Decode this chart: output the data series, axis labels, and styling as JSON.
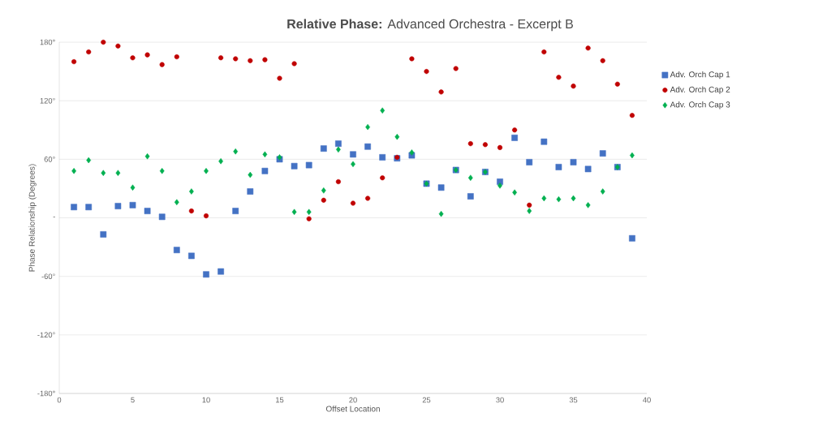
{
  "chart_data": {
    "type": "scatter",
    "title": "**Relative Phase:** Advanced Orchestra - Excerpt B",
    "xlabel": "Offset Location",
    "ylabel": "Phase Relationship (Degrees)",
    "x": [
      1,
      2,
      3,
      4,
      5,
      6,
      7,
      8,
      9,
      10,
      11,
      12,
      13,
      14,
      15,
      16,
      17,
      18,
      19,
      20,
      21,
      22,
      23,
      24,
      25,
      26,
      27,
      28,
      29,
      30,
      31,
      32,
      33,
      34,
      35,
      36,
      37,
      38,
      39
    ],
    "series": [
      {
        "name": "Adv. Orch Cap 1",
        "color": "#4472c4",
        "marker": "square",
        "values": [
          11,
          11,
          -17,
          12,
          13,
          7,
          1,
          -33,
          -39,
          -58,
          -55,
          7,
          27,
          48,
          60,
          53,
          54,
          71,
          76,
          65,
          73,
          62,
          61,
          64,
          35,
          31,
          49,
          22,
          47,
          37,
          82,
          57,
          78,
          52,
          57,
          50,
          66,
          52,
          -21
        ]
      },
      {
        "name": "Adv. Orch Cap 2",
        "color": "#c00000",
        "marker": "circle",
        "values": [
          160,
          170,
          180,
          176,
          164,
          167,
          157,
          165,
          7,
          2,
          164,
          163,
          161,
          162,
          143,
          158,
          -1,
          18,
          37,
          15,
          20,
          41,
          62,
          163,
          150,
          129,
          153,
          76,
          75,
          72,
          90,
          13,
          170,
          144,
          135,
          174,
          161,
          137,
          105
        ]
      },
      {
        "name": "Adv. Orch Cap 3",
        "color": "#00b050",
        "marker": "diamond",
        "values": [
          48,
          59,
          46,
          46,
          31,
          63,
          48,
          16,
          27,
          48,
          58,
          68,
          44,
          65,
          62,
          6,
          6,
          28,
          70,
          55,
          93,
          110,
          83,
          67,
          35,
          4,
          49,
          41,
          47,
          33,
          26,
          7,
          20,
          19,
          20,
          13,
          27,
          52,
          64
        ]
      }
    ],
    "xlim": [
      0,
      40
    ],
    "xticks": [
      0,
      5,
      10,
      15,
      20,
      25,
      30,
      35,
      40
    ],
    "ylim": [
      -180,
      180
    ],
    "yticks": [
      {
        "value": -180,
        "label": "-180°"
      },
      {
        "value": -120,
        "label": "-120°"
      },
      {
        "value": -60,
        "label": "-60°"
      },
      {
        "value": 0,
        "label": "-"
      },
      {
        "value": 60,
        "label": "60°"
      },
      {
        "value": 120,
        "label": "120°"
      },
      {
        "value": 180,
        "label": "180°"
      }
    ],
    "grid": "y",
    "legend": "right"
  }
}
